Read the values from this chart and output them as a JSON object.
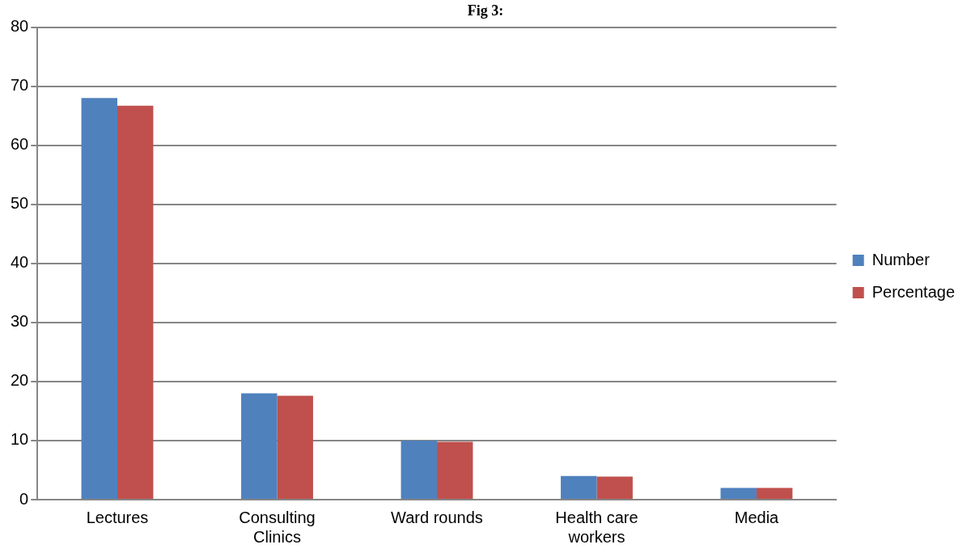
{
  "chart_data": {
    "type": "bar",
    "title": "Fig 3:",
    "categories": [
      "Lectures",
      "Consulting Clinics",
      "Ward rounds",
      "Health care workers",
      "Media"
    ],
    "series": [
      {
        "name": "Number",
        "color": "#4f81bd",
        "values": [
          68,
          18,
          10,
          4,
          2
        ]
      },
      {
        "name": "Percentage",
        "color": "#c0504d",
        "values": [
          66.7,
          17.6,
          9.8,
          3.9,
          2.0
        ]
      }
    ],
    "ylim": [
      0,
      80
    ],
    "yticks": [
      0,
      10,
      20,
      30,
      40,
      50,
      60,
      70,
      80
    ],
    "grid": "y",
    "legend": "right"
  }
}
